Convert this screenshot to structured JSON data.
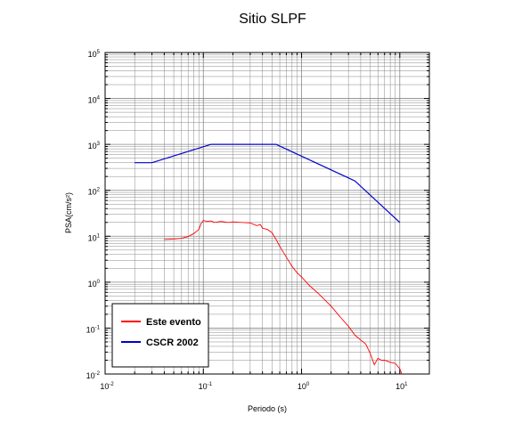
{
  "chart_data": {
    "type": "line",
    "title": "Sitio SLPF",
    "xlabel": "Periodo (s)",
    "ylabel": "PSA(cm/s²)",
    "xscale": "log",
    "yscale": "log",
    "xlim": [
      0.01,
      20
    ],
    "ylim": [
      0.01,
      100000
    ],
    "grid": true,
    "legend_position": "bottom-left",
    "x_ticks": [
      {
        "base": "10",
        "exp": "-2",
        "value": 0.01
      },
      {
        "base": "10",
        "exp": "-1",
        "value": 0.1
      },
      {
        "base": "10",
        "exp": "0",
        "value": 1
      },
      {
        "base": "10",
        "exp": "1",
        "value": 10
      }
    ],
    "y_ticks": [
      {
        "base": "10",
        "exp": "-2",
        "value": 0.01
      },
      {
        "base": "10",
        "exp": "-1",
        "value": 0.1
      },
      {
        "base": "10",
        "exp": "0",
        "value": 1
      },
      {
        "base": "10",
        "exp": "1",
        "value": 10
      },
      {
        "base": "10",
        "exp": "2",
        "value": 100
      },
      {
        "base": "10",
        "exp": "3",
        "value": 1000
      },
      {
        "base": "10",
        "exp": "4",
        "value": 10000
      },
      {
        "base": "10",
        "exp": "5",
        "value": 100000
      }
    ],
    "series": [
      {
        "name": "Este evento",
        "color": "#ff0000",
        "points": [
          [
            0.04,
            8.5
          ],
          [
            0.05,
            8.7
          ],
          [
            0.06,
            9.0
          ],
          [
            0.07,
            9.8
          ],
          [
            0.08,
            11.5
          ],
          [
            0.09,
            14
          ],
          [
            0.095,
            19
          ],
          [
            0.1,
            22
          ],
          [
            0.11,
            21
          ],
          [
            0.12,
            21.5
          ],
          [
            0.13,
            20
          ],
          [
            0.15,
            21
          ],
          [
            0.18,
            20
          ],
          [
            0.2,
            20.5
          ],
          [
            0.25,
            20
          ],
          [
            0.3,
            19.5
          ],
          [
            0.35,
            17
          ],
          [
            0.38,
            18
          ],
          [
            0.4,
            15
          ],
          [
            0.45,
            14
          ],
          [
            0.5,
            12
          ],
          [
            0.55,
            8.5
          ],
          [
            0.6,
            6
          ],
          [
            0.7,
            3.5
          ],
          [
            0.8,
            2.2
          ],
          [
            0.9,
            1.6
          ],
          [
            1.0,
            1.3
          ],
          [
            1.2,
            0.85
          ],
          [
            1.5,
            0.55
          ],
          [
            2.0,
            0.3
          ],
          [
            2.5,
            0.17
          ],
          [
            3.0,
            0.11
          ],
          [
            3.5,
            0.07
          ],
          [
            4.0,
            0.055
          ],
          [
            4.5,
            0.045
          ],
          [
            5.0,
            0.028
          ],
          [
            5.5,
            0.016
          ],
          [
            6.0,
            0.022
          ],
          [
            6.5,
            0.02
          ],
          [
            7.0,
            0.02
          ],
          [
            8.0,
            0.018
          ],
          [
            9.0,
            0.017
          ],
          [
            10.0,
            0.013
          ],
          [
            10.5,
            0.01
          ]
        ]
      },
      {
        "name": "CSCR 2002",
        "color": "#0000cc",
        "points": [
          [
            0.02,
            400
          ],
          [
            0.03,
            400
          ],
          [
            0.12,
            1000
          ],
          [
            0.55,
            1000
          ],
          [
            3.5,
            160
          ],
          [
            10,
            20
          ]
        ]
      }
    ]
  }
}
